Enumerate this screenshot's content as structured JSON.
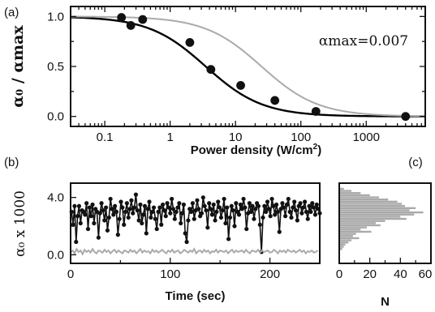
{
  "chart_data": [
    {
      "panel": "(a)",
      "type": "scatter",
      "xscale": "log",
      "xlim": [
        0.03,
        8000
      ],
      "ylim": [
        -0.1,
        1.1
      ],
      "xlabel_pre": "Power density (W/cm",
      "xlabel_sup": "2",
      "xlabel_post": ")",
      "ylabel": "α₀ / αmax",
      "xticks": [
        0.1,
        1,
        10,
        100,
        1000
      ],
      "xtick_labels": [
        "0.1",
        "1",
        "10",
        "100",
        "1000"
      ],
      "yticks": [
        0.0,
        0.5,
        1.0
      ],
      "ytick_labels": [
        "0.0",
        "0.5",
        "1.0"
      ],
      "annotation": "αmax=0.007",
      "points": [
        {
          "x": 0.18,
          "y": 0.99
        },
        {
          "x": 0.25,
          "y": 0.91
        },
        {
          "x": 0.38,
          "y": 0.97
        },
        {
          "x": 2.0,
          "y": 0.74
        },
        {
          "x": 4.2,
          "y": 0.47
        },
        {
          "x": 12,
          "y": 0.31
        },
        {
          "x": 40,
          "y": 0.16
        },
        {
          "x": 170,
          "y": 0.05
        },
        {
          "x": 4000,
          "y": 0.0
        }
      ],
      "curves": [
        {
          "color": "#000000",
          "x0": 3.5,
          "n": 1
        },
        {
          "color": "#aaaaaa",
          "x0": 25,
          "n": 1
        }
      ]
    },
    {
      "panel": "(b)",
      "type": "line",
      "xlim": [
        0,
        250
      ],
      "ylim": [
        -0.6,
        5.0
      ],
      "xlabel": "Time (sec)",
      "ylabel": "α₀ x 1000",
      "xticks": [
        0,
        100,
        200
      ],
      "xtick_labels": [
        "0",
        "100",
        "200"
      ],
      "yticks": [
        0.0,
        4.0
      ],
      "ytick_labels": [
        "0.0",
        "4.0"
      ],
      "series": [
        {
          "color": "#111111",
          "markers": true,
          "x_start": 1,
          "x_step": 1.5,
          "values": [
            3.0,
            2.1,
            3.4,
            0.9,
            2.7,
            3.4,
            2.2,
            3.1,
            3.0,
            2.8,
            3.6,
            1.8,
            3.3,
            2.7,
            3.5,
            2.2,
            3.2,
            3.0,
            1.2,
            2.9,
            3.6,
            3.1,
            2.4,
            3.3,
            1.7,
            2.6,
            3.9,
            3.2,
            2.8,
            3.4,
            3.0,
            1.4,
            2.5,
            3.7,
            3.3,
            2.1,
            3.0,
            3.6,
            2.6,
            3.2,
            3.8,
            2.9,
            3.3,
            4.2,
            3.1,
            2.4,
            3.5,
            2.2,
            2.8,
            3.4,
            1.5,
            3.2,
            3.7,
            2.6,
            3.0,
            3.3,
            2.5,
            1.8,
            3.0,
            3.3,
            2.1,
            3.5,
            3.1,
            2.7,
            3.6,
            3.3,
            2.9,
            3.9,
            3.2,
            2.5,
            3.0,
            3.3,
            3.6,
            2.2,
            2.9,
            3.5,
            1.5,
            0.9,
            2.4,
            3.2,
            3.0,
            3.6,
            2.5,
            3.1,
            3.8,
            3.2,
            2.7,
            2.9,
            4.0,
            3.4,
            3.1,
            1.9,
            3.6,
            3.2,
            2.8,
            3.5,
            2.4,
            3.0,
            3.7,
            3.3,
            2.6,
            3.1,
            3.9,
            2.2,
            3.3,
            1.1,
            2.6,
            3.4,
            3.1,
            2.0,
            3.6,
            3.0,
            2.8,
            3.5,
            3.2,
            3.9,
            3.3,
            1.8,
            2.9,
            3.6,
            3.0,
            3.4,
            2.5,
            3.2,
            3.6,
            3.4,
            2.1,
            0.2,
            2.6,
            3.4,
            3.0,
            3.7,
            3.2,
            2.7,
            3.9,
            3.4,
            2.8,
            3.5,
            3.0,
            1.6,
            3.2,
            3.6,
            3.3,
            2.7,
            3.5,
            3.9,
            3.0,
            2.6,
            3.3,
            3.7,
            3.1,
            2.4,
            3.4,
            3.6,
            2.9,
            3.3,
            3.7,
            3.0,
            2.5,
            3.4,
            3.0,
            3.6,
            3.3,
            2.8,
            3.5,
            3.2,
            2.9,
            3.8
          ]
        },
        {
          "color": "#aaaaaa",
          "markers": false,
          "x_start": 0,
          "x_step": 2,
          "values": [
            0.15,
            0.3,
            0.1,
            0.4,
            0.2,
            0.3,
            0.05,
            0.35,
            0.2,
            0.3,
            0.15,
            0.4,
            0.2,
            0.1,
            0.3,
            0.25,
            0.15,
            0.35,
            0.2,
            0.3,
            0.1,
            0.25,
            0.35,
            0.15,
            0.3,
            0.2,
            0.1,
            0.3,
            0.25,
            0.15,
            0.35,
            0.2,
            0.3,
            0.1,
            0.25,
            0.4,
            0.15,
            0.3,
            0.2,
            0.25,
            0.1,
            0.35,
            0.2,
            0.3,
            0.15,
            0.25,
            0.35,
            0.2,
            0.1,
            0.3,
            0.2,
            0.35,
            0.15,
            0.25,
            0.3,
            0.1,
            0.2,
            0.35,
            0.25,
            0.15,
            0.3,
            0.2,
            0.4,
            0.1,
            0.25,
            0.3,
            0.15,
            0.35,
            0.2,
            0.3,
            0.1,
            0.25,
            0.2,
            0.35,
            0.15,
            0.3,
            0.25,
            0.2,
            0.3,
            0.1,
            0.25,
            0.35,
            0.15,
            0.3,
            0.2,
            0.25,
            0.3,
            0.15,
            0.35,
            0.2,
            0.1,
            0.3,
            0.25,
            0.2,
            0.35,
            0.15,
            0.3,
            0.2,
            0.25,
            0.3,
            0.15,
            0.2,
            0.35,
            0.25,
            0.1,
            0.3,
            0.2,
            0.3,
            0.15,
            0.35,
            0.25,
            0.2,
            0.3,
            0.15,
            0.25,
            0.35,
            0.2,
            0.3,
            0.1,
            0.25,
            0.2,
            0.3,
            0.15,
            0.2,
            0.3
          ]
        }
      ]
    },
    {
      "panel": "(c)",
      "type": "bar",
      "orientation": "horizontal",
      "xlim": [
        0,
        60
      ],
      "xlabel": "N",
      "xticks": [
        0,
        20,
        40,
        60
      ],
      "xtick_labels": [
        "0",
        "20",
        "40",
        "60"
      ],
      "bins": [
        {
          "y": 4.6,
          "n": 3
        },
        {
          "y": 4.45,
          "n": 8
        },
        {
          "y": 4.3,
          "n": 14
        },
        {
          "y": 4.15,
          "n": 20
        },
        {
          "y": 4.0,
          "n": 26
        },
        {
          "y": 3.85,
          "n": 32
        },
        {
          "y": 3.7,
          "n": 38
        },
        {
          "y": 3.55,
          "n": 41
        },
        {
          "y": 3.4,
          "n": 43
        },
        {
          "y": 3.25,
          "n": 50
        },
        {
          "y": 3.1,
          "n": 46
        },
        {
          "y": 2.95,
          "n": 55
        },
        {
          "y": 2.8,
          "n": 49
        },
        {
          "y": 2.65,
          "n": 40
        },
        {
          "y": 2.5,
          "n": 44
        },
        {
          "y": 2.35,
          "n": 30
        },
        {
          "y": 2.2,
          "n": 24
        },
        {
          "y": 2.05,
          "n": 27
        },
        {
          "y": 1.9,
          "n": 18
        },
        {
          "y": 1.75,
          "n": 14
        },
        {
          "y": 1.6,
          "n": 21
        },
        {
          "y": 1.45,
          "n": 11
        },
        {
          "y": 1.3,
          "n": 9
        },
        {
          "y": 1.15,
          "n": 13
        },
        {
          "y": 1.0,
          "n": 8
        },
        {
          "y": 0.85,
          "n": 6
        },
        {
          "y": 0.7,
          "n": 4
        },
        {
          "y": 0.55,
          "n": 3
        },
        {
          "y": 0.4,
          "n": 2
        }
      ],
      "bar_color": "#aaaaaa"
    }
  ]
}
